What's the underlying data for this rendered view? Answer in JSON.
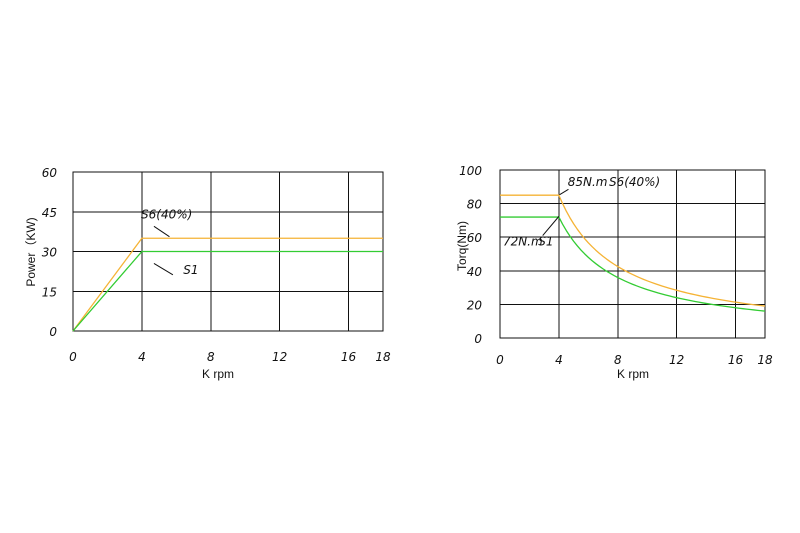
{
  "chart_data": [
    {
      "type": "line",
      "xlabel": "K rpm",
      "ylabel": "Power（KW)",
      "xlim": [
        0,
        18
      ],
      "ylim": [
        0,
        60
      ],
      "x_ticks": [
        "0",
        "4",
        "8",
        "12",
        "16",
        "18"
      ],
      "y_ticks": [
        "0",
        "15",
        "30",
        "45",
        "60"
      ],
      "grid": true,
      "series": [
        {
          "name": "S6(40%)",
          "color": "#f5b335",
          "x": [
            0,
            4,
            18
          ],
          "y": [
            0,
            35,
            35
          ]
        },
        {
          "name": "S1",
          "color": "#33cc33",
          "x": [
            0,
            4,
            18
          ],
          "y": [
            0,
            30,
            30
          ]
        }
      ],
      "annotations": [
        {
          "text": "S6(40%)",
          "x": 3.95,
          "y": 42.5
        },
        {
          "text": "S1",
          "x": 6.4,
          "y": 21.5
        }
      ]
    },
    {
      "type": "line",
      "xlabel": "K rpm",
      "ylabel": "Torq(Nm)",
      "xlim": [
        0,
        18
      ],
      "ylim": [
        0,
        100
      ],
      "x_ticks": [
        "0",
        "4",
        "8",
        "12",
        "16",
        "18"
      ],
      "y_ticks": [
        "0",
        "20",
        "40",
        "60",
        "80",
        "100"
      ],
      "grid": true,
      "series": [
        {
          "name": "S6(40%)",
          "color": "#f5b335",
          "x": [
            0,
            4,
            18
          ],
          "y": [
            85,
            85,
            19
          ]
        },
        {
          "name": "S1",
          "color": "#33cc33",
          "x": [
            0,
            4,
            18
          ],
          "y": [
            72,
            72,
            16
          ]
        }
      ],
      "annotations": [
        {
          "text": "85N.m",
          "x": 4.6,
          "y": 90.5
        },
        {
          "text": "S6(40%)",
          "x": 7.4,
          "y": 90.5
        },
        {
          "text": "72N.m",
          "x": 0.2,
          "y": 55
        },
        {
          "text": "S1",
          "x": 2.6,
          "y": 55
        }
      ]
    }
  ]
}
